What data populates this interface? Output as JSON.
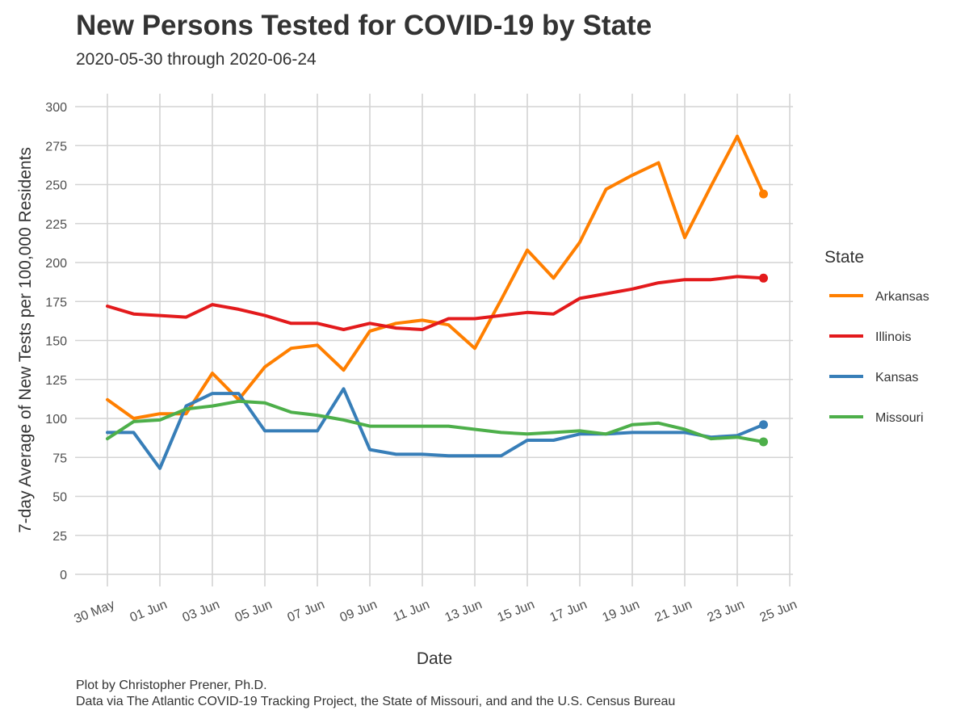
{
  "header": {
    "title": "New Persons Tested for COVID-19 by State",
    "subtitle": "2020-05-30 through 2020-06-24"
  },
  "caption": {
    "line1": "Plot by Christopher Prener, Ph.D.",
    "line2": "Data via The Atlantic COVID-19 Tracking Project, the State of Missouri, and and the U.S. Census Bureau"
  },
  "chart_data": {
    "type": "line",
    "title": "New Persons Tested for COVID-19 by State",
    "subtitle": "2020-05-30 through 2020-06-24",
    "xlabel": "Date",
    "ylabel": "7-day Average of New Tests per 100,000 Residents",
    "xlim": [
      "2020-05-30",
      "2020-06-25"
    ],
    "ylim": [
      0,
      300
    ],
    "x_ticks": [
      "30 May",
      "01 Jun",
      "03 Jun",
      "05 Jun",
      "07 Jun",
      "09 Jun",
      "11 Jun",
      "13 Jun",
      "15 Jun",
      "17 Jun",
      "19 Jun",
      "21 Jun",
      "23 Jun",
      "25 Jun"
    ],
    "y_ticks": [
      0,
      25,
      50,
      75,
      100,
      125,
      150,
      175,
      200,
      225,
      250,
      275,
      300
    ],
    "grid": true,
    "legend": {
      "title": "State",
      "placement": "right"
    },
    "x": [
      "2020-05-30",
      "2020-05-31",
      "2020-06-01",
      "2020-06-02",
      "2020-06-03",
      "2020-06-04",
      "2020-06-05",
      "2020-06-06",
      "2020-06-07",
      "2020-06-08",
      "2020-06-09",
      "2020-06-10",
      "2020-06-11",
      "2020-06-12",
      "2020-06-13",
      "2020-06-14",
      "2020-06-15",
      "2020-06-16",
      "2020-06-17",
      "2020-06-18",
      "2020-06-19",
      "2020-06-20",
      "2020-06-21",
      "2020-06-22",
      "2020-06-23",
      "2020-06-24"
    ],
    "series": [
      {
        "name": "Arkansas",
        "color": "#ff7f00",
        "values": [
          112,
          100,
          103,
          103,
          129,
          112,
          133,
          145,
          147,
          131,
          156,
          161,
          163,
          160,
          145,
          176,
          208,
          190,
          213,
          247,
          256,
          264,
          216,
          249,
          281,
          244
        ]
      },
      {
        "name": "Illinois",
        "color": "#e31a1c",
        "values": [
          172,
          167,
          166,
          165,
          173,
          170,
          166,
          161,
          161,
          157,
          161,
          158,
          157,
          164,
          164,
          166,
          168,
          167,
          177,
          180,
          183,
          187,
          189,
          189,
          191,
          190
        ]
      },
      {
        "name": "Kansas",
        "color": "#377eb8",
        "values": [
          91,
          91,
          68,
          108,
          116,
          116,
          92,
          92,
          92,
          119,
          80,
          77,
          77,
          76,
          76,
          76,
          86,
          86,
          90,
          90,
          91,
          91,
          91,
          88,
          89,
          96
        ]
      },
      {
        "name": "Missouri",
        "color": "#4daf4a",
        "values": [
          87,
          98,
          99,
          106,
          108,
          111,
          110,
          104,
          102,
          99,
          95,
          95,
          95,
          95,
          93,
          91,
          90,
          91,
          92,
          90,
          96,
          97,
          93,
          87,
          88,
          85
        ]
      }
    ]
  }
}
